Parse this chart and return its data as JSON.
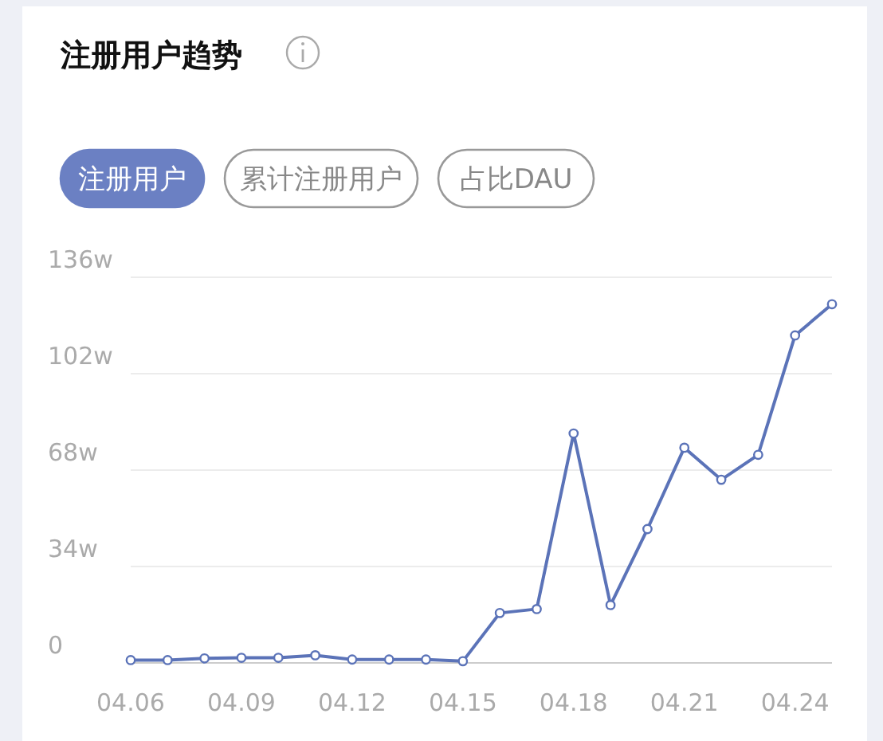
{
  "chart_data": {
    "type": "line",
    "title": "注册用户趋势",
    "annotations": [
      "注册用户",
      "累计注册用户",
      "占比DAU"
    ],
    "categories": [
      "04.06",
      null,
      null,
      "04.09",
      null,
      null,
      "04.12",
      null,
      null,
      "04.15",
      null,
      null,
      "04.18",
      null,
      null,
      "04.21",
      null,
      null,
      "04.24",
      null
    ],
    "series": [
      {
        "color": "#5b73b8",
        "values": [
          1,
          1,
          1.6,
          1.8,
          1.8,
          2.7,
          1.2,
          1.2,
          1.2,
          0.6,
          17.6,
          19,
          80.9,
          20.4,
          47.2,
          75.9,
          64.6,
          73.4,
          115.5,
          126.5
        ]
      }
    ],
    "ylim": [
      0,
      136
    ],
    "yticks": [
      {
        "value": 0,
        "label": "0"
      },
      {
        "value": 34,
        "label": "34w"
      },
      {
        "value": 68,
        "label": "68w"
      },
      {
        "value": 102,
        "label": "102w"
      },
      {
        "value": 136,
        "label": "136w"
      }
    ],
    "grid": "y",
    "marker": "circle",
    "line_style": "solid"
  }
}
